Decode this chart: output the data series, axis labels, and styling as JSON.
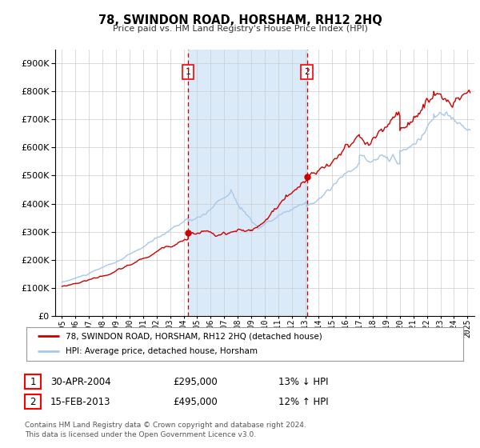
{
  "title": "78, SWINDON ROAD, HORSHAM, RH12 2HQ",
  "subtitle": "Price paid vs. HM Land Registry's House Price Index (HPI)",
  "background_color": "#ffffff",
  "plot_bg_color": "#ffffff",
  "grid_color": "#cccccc",
  "hpi_color": "#a8c8e8",
  "price_color": "#cc0000",
  "shade_color": "#daeaf8",
  "sale1_date_num": 2004.33,
  "sale2_date_num": 2013.12,
  "sale1_price": 295000,
  "sale2_price": 495000,
  "ylim_max": 950000,
  "ylim_min": 0,
  "xlim_min": 1994.5,
  "xlim_max": 2025.5,
  "legend_line1": "78, SWINDON ROAD, HORSHAM, RH12 2HQ (detached house)",
  "legend_line2": "HPI: Average price, detached house, Horsham",
  "table_row1_num": "1",
  "table_row1_date": "30-APR-2004",
  "table_row1_price": "£295,000",
  "table_row1_hpi": "13% ↓ HPI",
  "table_row2_num": "2",
  "table_row2_date": "15-FEB-2013",
  "table_row2_price": "£495,000",
  "table_row2_hpi": "12% ↑ HPI",
  "footnote1": "Contains HM Land Registry data © Crown copyright and database right 2024.",
  "footnote2": "This data is licensed under the Open Government Licence v3.0."
}
